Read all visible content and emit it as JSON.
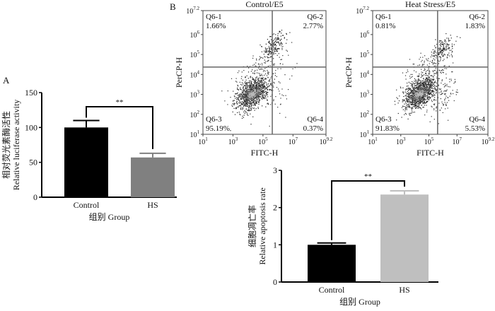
{
  "panel_labels": {
    "a": "A",
    "b": "B"
  },
  "chart_data": [
    {
      "id": "luciferase",
      "type": "bar",
      "categories": [
        "Control",
        "HS"
      ],
      "values": [
        100,
        57
      ],
      "errors": [
        10,
        6
      ],
      "colors": [
        "#000000",
        "#808080"
      ],
      "ylabel_cn": "相对荧光素酶活性",
      "ylabel": "Relative luciferase activity",
      "xlabel": "组别 Group",
      "ylim": [
        0,
        150
      ],
      "yticks": [
        0,
        50,
        100,
        150
      ],
      "significance": "**"
    },
    {
      "id": "flow-control",
      "type": "scatter",
      "title": "Control/E5",
      "xlabel": "FITC-H",
      "ylabel": "PerCP-H",
      "xscale": "log10",
      "xlim_exp": [
        1,
        9.2
      ],
      "ylim_exp": [
        1,
        7.2
      ],
      "xtick_exps": [
        "1",
        "3",
        "5",
        "7",
        "9.2"
      ],
      "ytick_exps": [
        "1",
        "2",
        "3",
        "4",
        "5",
        "6",
        "7.2"
      ],
      "gate_exp": [
        5.62,
        4.37
      ],
      "quadrants": [
        {
          "name": "Q6-1",
          "value": "1.66%"
        },
        {
          "name": "Q6-2",
          "value": "2.77%"
        },
        {
          "name": "Q6-3",
          "value": "95.19%"
        },
        {
          "name": "Q6-4",
          "value": "0.37%"
        }
      ]
    },
    {
      "id": "flow-heat",
      "type": "scatter",
      "title": "Heat Stress/E5",
      "xlabel": "FITC-H",
      "ylabel": "PerCP-H",
      "xscale": "log10",
      "xlim_exp": [
        1,
        9.2
      ],
      "ylim_exp": [
        1,
        7.2
      ],
      "xtick_exps": [
        "1",
        "3",
        "5",
        "7",
        "9.2"
      ],
      "ytick_exps": [
        "1",
        "2",
        "3",
        "4",
        "5",
        "6",
        "7.2"
      ],
      "gate_exp": [
        5.62,
        4.37
      ],
      "quadrants": [
        {
          "name": "Q6-1",
          "value": "0.81%"
        },
        {
          "name": "Q6-2",
          "value": "1.83%"
        },
        {
          "name": "Q6-3",
          "value": "91.83%"
        },
        {
          "name": "Q6-4",
          "value": "5.53%"
        }
      ]
    },
    {
      "id": "apoptosis",
      "type": "bar",
      "categories": [
        "Control",
        "HS"
      ],
      "values": [
        1.0,
        2.35
      ],
      "errors": [
        0.05,
        0.1
      ],
      "colors": [
        "#000000",
        "#bfbfbf"
      ],
      "ylabel_cn": "细胞凋亡率",
      "ylabel": "Relative apoptosis rate",
      "xlabel": "组别 Group",
      "ylim": [
        0,
        3
      ],
      "yticks": [
        0,
        1,
        2,
        3
      ],
      "significance": "**"
    }
  ],
  "tick_base": "10"
}
